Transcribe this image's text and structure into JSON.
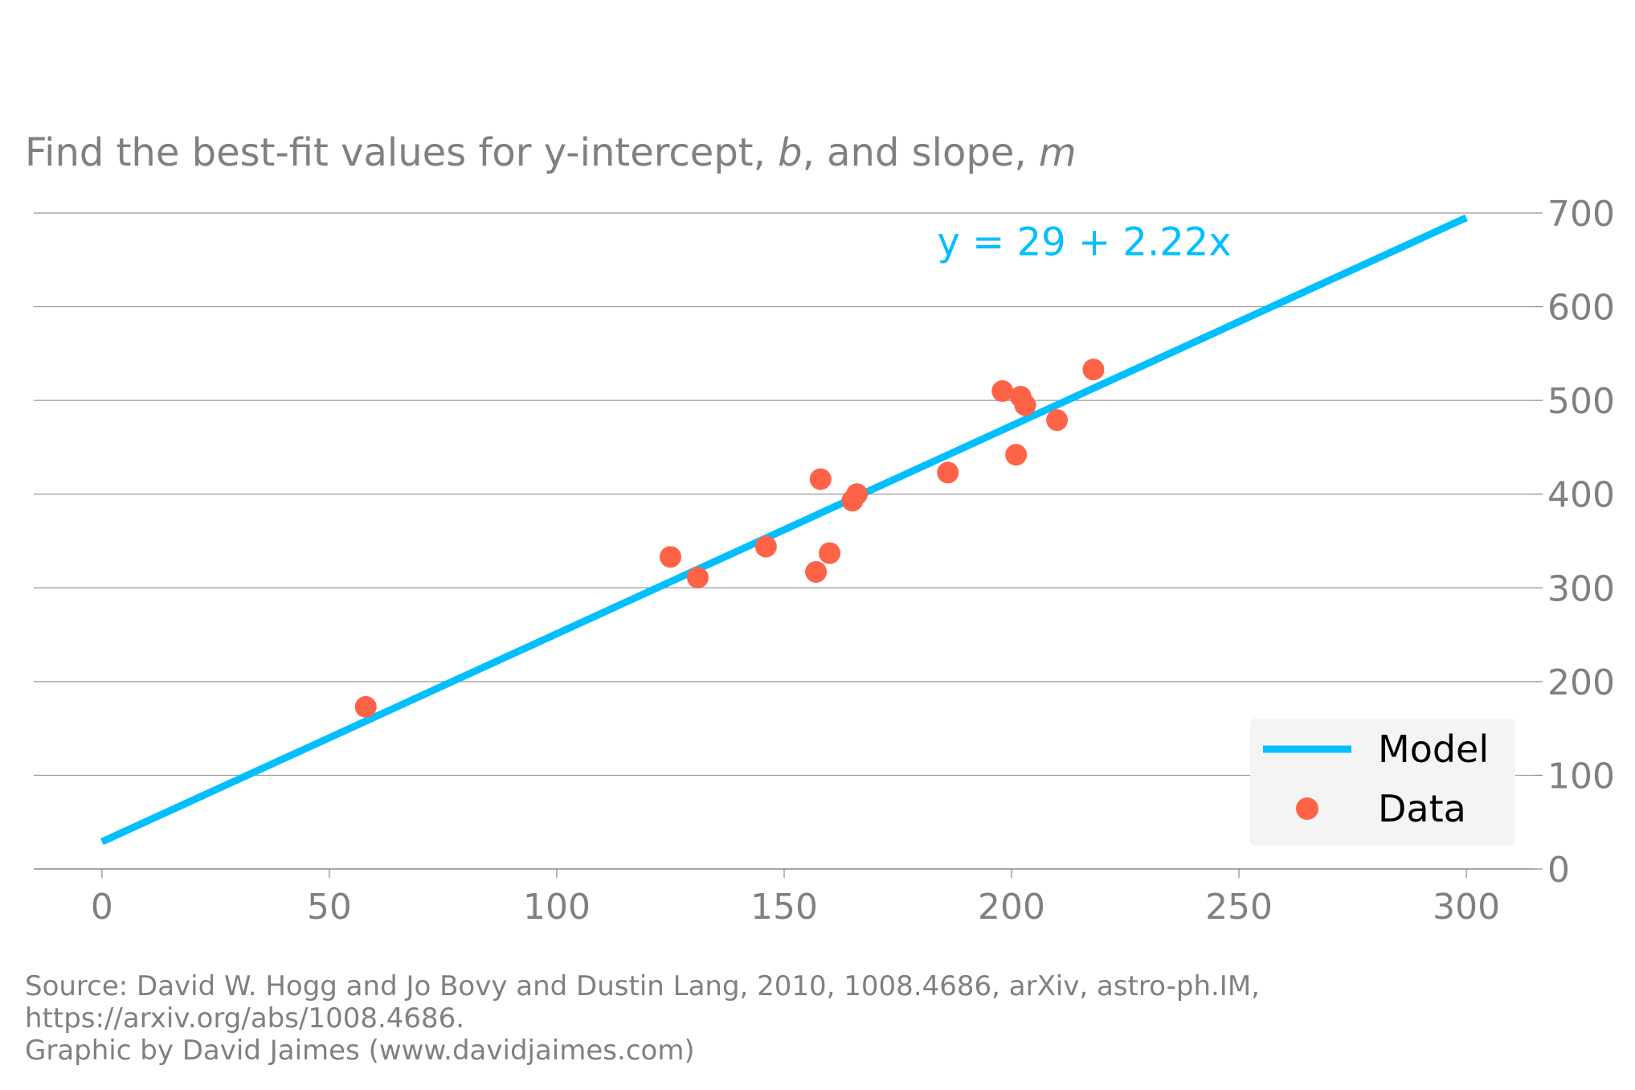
{
  "title": {
    "text_before_b": "Find the best-fit values for y-intercept, ",
    "b": "b",
    "text_before_m": ", and slope, ",
    "m": "m"
  },
  "colors": {
    "model": "#00bfff",
    "data": "#ff6347",
    "grid": "#999999",
    "text": "#808080",
    "legend_bg": "#f4f4f4"
  },
  "chart_data": {
    "type": "scatter",
    "xlim": [
      -15,
      315
    ],
    "ylim": [
      0,
      700
    ],
    "x_ticks": [
      0,
      50,
      100,
      150,
      200,
      250,
      300
    ],
    "y_ticks": [
      0,
      100,
      200,
      300,
      400,
      500,
      600,
      700
    ],
    "grid": "horizontal",
    "y_axis_side": "right",
    "legend_position": "bottom-right",
    "annotation": "y = 29 + 2.22x",
    "annotation_at": [
      216,
      655
    ],
    "legend": [
      "Model",
      "Data"
    ],
    "model": {
      "intercept": 29,
      "slope": 2.22,
      "x_range": [
        0,
        300
      ]
    },
    "points": [
      [
        58,
        173
      ],
      [
        125,
        333
      ],
      [
        131,
        311
      ],
      [
        146,
        344
      ],
      [
        157,
        317
      ],
      [
        158,
        416
      ],
      [
        160,
        337
      ],
      [
        165,
        393
      ],
      [
        166,
        400
      ],
      [
        186,
        423
      ],
      [
        198,
        510
      ],
      [
        201,
        442
      ],
      [
        202,
        504
      ],
      [
        203,
        495
      ],
      [
        210,
        479
      ],
      [
        218,
        533
      ]
    ]
  },
  "source": {
    "line1": "Source: David W. Hogg and Jo Bovy and Dustin Lang, 2010, 1008.4686, arXiv, astro-ph.IM,",
    "line2": "https://arxiv.org/abs/1008.4686.",
    "line3": "Graphic by David Jaimes (www.davidjaimes.com)"
  }
}
